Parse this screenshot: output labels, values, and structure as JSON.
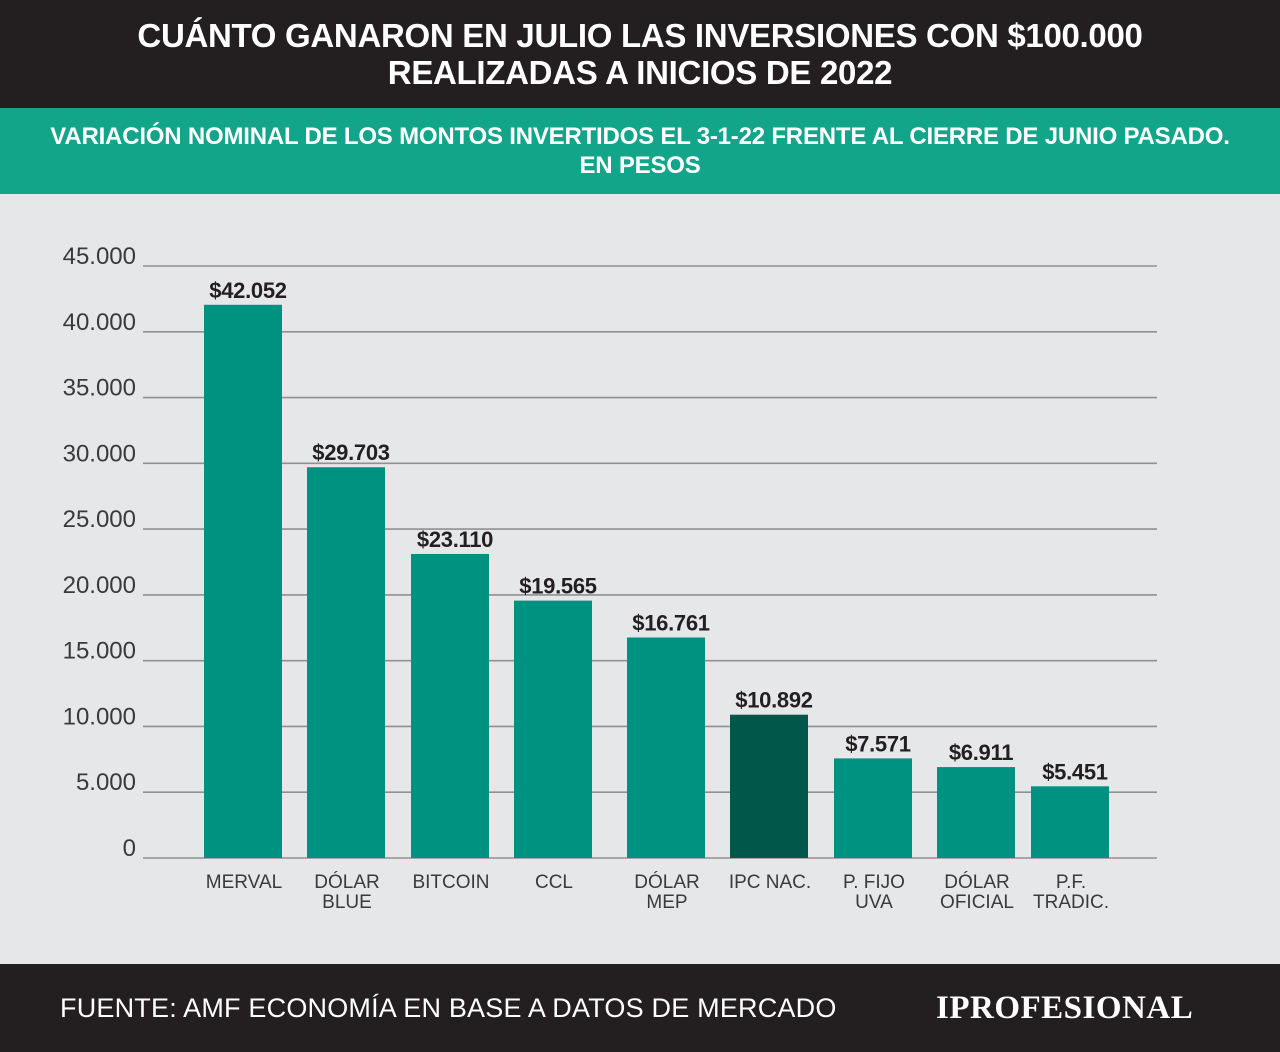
{
  "header": {
    "title_line1": "CUÁNTO GANARON EN JULIO LAS INVERSIONES CON $100.000",
    "title_line2": "REALIZADAS A INICIOS DE 2022"
  },
  "subheader": {
    "line1": "VARIACIÓN NOMINAL DE LOS MONTOS INVERTIDOS EL 3-1-22 FRENTE AL CIERRE DE JUNIO PASADO.",
    "line2": "EN PESOS"
  },
  "footer": {
    "source": "FUENTE: AMF ECONOMÍA EN BASE A DATOS DE MERCADO",
    "brand": "IPROFESIONAL"
  },
  "colors": {
    "bar": "#009281",
    "bar_highlight": "#00574a",
    "grid": "#8e9094",
    "header_bg": "#231f20",
    "subheader_bg": "#12a589"
  },
  "chart_data": {
    "type": "bar",
    "title": "CUÁNTO GANARON EN JULIO LAS INVERSIONES CON $100.000 REALIZADAS A INICIOS DE 2022",
    "subtitle": "VARIACIÓN NOMINAL DE LOS MONTOS INVERTIDOS EL 3-1-22 FRENTE AL CIERRE DE JUNIO PASADO. EN PESOS",
    "xlabel": "",
    "ylabel": "",
    "ylim": [
      0,
      45000
    ],
    "grid": true,
    "yticks": [
      {
        "value": 0,
        "label": "0"
      },
      {
        "value": 5000,
        "label": "5.000"
      },
      {
        "value": 10000,
        "label": "10.000"
      },
      {
        "value": 15000,
        "label": "15.000"
      },
      {
        "value": 20000,
        "label": "20.000"
      },
      {
        "value": 25000,
        "label": "25.000"
      },
      {
        "value": 30000,
        "label": "30.000"
      },
      {
        "value": 35000,
        "label": "35.000"
      },
      {
        "value": 40000,
        "label": "40.000"
      },
      {
        "value": 45000,
        "label": "45.000"
      }
    ],
    "bars": [
      {
        "category": [
          "MERVAL"
        ],
        "value": 42052,
        "label": "$42.052",
        "highlight": false
      },
      {
        "category": [
          "DÓLAR",
          "BLUE"
        ],
        "value": 29703,
        "label": "$29.703",
        "highlight": false
      },
      {
        "category": [
          "BITCOIN"
        ],
        "value": 23110,
        "label": "$23.110",
        "highlight": false
      },
      {
        "category": [
          "CCL"
        ],
        "value": 19565,
        "label": "$19.565",
        "highlight": false
      },
      {
        "category": [
          "DÓLAR",
          "MEP"
        ],
        "value": 16761,
        "label": "$16.761",
        "highlight": false
      },
      {
        "category": [
          "IPC  NAC."
        ],
        "value": 10892,
        "label": "$10.892",
        "highlight": true
      },
      {
        "category": [
          "P. FIJO",
          "UVA"
        ],
        "value": 7571,
        "label": "$7.571",
        "highlight": false
      },
      {
        "category": [
          "DÓLAR",
          "OFICIAL"
        ],
        "value": 6911,
        "label": "$6.911",
        "highlight": false
      },
      {
        "category": [
          "P.F.",
          "TRADIC."
        ],
        "value": 5451,
        "label": "$5.451",
        "highlight": false
      }
    ]
  }
}
